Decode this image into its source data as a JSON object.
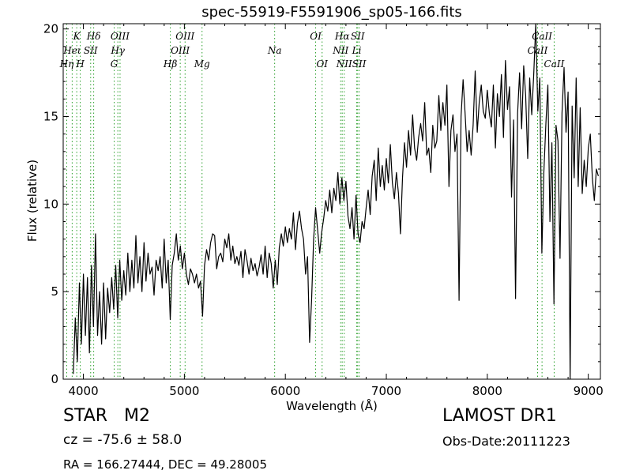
{
  "chart_data": {
    "type": "line",
    "title": "spec-55919-F5591906_sp05-166.fits",
    "xlabel": "Wavelength (Å)",
    "ylabel": "Flux (relative)",
    "xlim": [
      3800,
      9120
    ],
    "ylim": [
      0,
      20.3
    ],
    "xticks": [
      "4000",
      "5000",
      "6000",
      "7000",
      "8000",
      "9000"
    ],
    "yticks": [
      "0",
      "5",
      "10",
      "15",
      "20"
    ],
    "grid": false,
    "line_color": "#000000",
    "marker_color": "#2ca02c",
    "series": [
      {
        "values": [
          [
            3900,
            0.3
          ],
          [
            3920,
            3.5
          ],
          [
            3940,
            1.0
          ],
          [
            3960,
            5.5
          ],
          [
            3980,
            2.0
          ],
          [
            4000,
            6.0
          ],
          [
            4020,
            2.5
          ],
          [
            4040,
            5.8
          ],
          [
            4060,
            1.5
          ],
          [
            4080,
            6.5
          ],
          [
            4100,
            3.0
          ],
          [
            4120,
            8.3
          ],
          [
            4140,
            2.5
          ],
          [
            4160,
            5.0
          ],
          [
            4180,
            2.0
          ],
          [
            4200,
            5.5
          ],
          [
            4220,
            2.3
          ],
          [
            4240,
            5.2
          ],
          [
            4260,
            3.8
          ],
          [
            4280,
            5.8
          ],
          [
            4300,
            4.0
          ],
          [
            4320,
            6.5
          ],
          [
            4340,
            3.5
          ],
          [
            4360,
            6.8
          ],
          [
            4380,
            4.5
          ],
          [
            4400,
            6.2
          ],
          [
            4420,
            4.8
          ],
          [
            4440,
            7.2
          ],
          [
            4460,
            5.0
          ],
          [
            4480,
            6.8
          ],
          [
            4500,
            5.2
          ],
          [
            4520,
            8.2
          ],
          [
            4540,
            5.5
          ],
          [
            4560,
            7.0
          ],
          [
            4580,
            5.0
          ],
          [
            4600,
            7.8
          ],
          [
            4620,
            5.6
          ],
          [
            4640,
            7.2
          ],
          [
            4660,
            6.0
          ],
          [
            4680,
            6.4
          ],
          [
            4700,
            4.8
          ],
          [
            4720,
            6.8
          ],
          [
            4740,
            6.2
          ],
          [
            4760,
            7.0
          ],
          [
            4780,
            5.2
          ],
          [
            4800,
            8.0
          ],
          [
            4820,
            5.5
          ],
          [
            4840,
            6.8
          ],
          [
            4860,
            3.4
          ],
          [
            4880,
            6.5
          ],
          [
            4900,
            7.2
          ],
          [
            4920,
            8.3
          ],
          [
            4940,
            6.8
          ],
          [
            4960,
            7.6
          ],
          [
            4980,
            6.3
          ],
          [
            5000,
            7.2
          ],
          [
            5020,
            6.0
          ],
          [
            5040,
            5.4
          ],
          [
            5060,
            6.3
          ],
          [
            5080,
            6.0
          ],
          [
            5100,
            5.5
          ],
          [
            5120,
            6.0
          ],
          [
            5140,
            5.2
          ],
          [
            5160,
            5.6
          ],
          [
            5180,
            3.6
          ],
          [
            5200,
            6.5
          ],
          [
            5220,
            7.4
          ],
          [
            5240,
            6.8
          ],
          [
            5260,
            7.8
          ],
          [
            5280,
            8.3
          ],
          [
            5300,
            8.2
          ],
          [
            5320,
            6.3
          ],
          [
            5340,
            7.0
          ],
          [
            5360,
            7.2
          ],
          [
            5380,
            6.7
          ],
          [
            5400,
            8.0
          ],
          [
            5420,
            7.5
          ],
          [
            5440,
            8.3
          ],
          [
            5460,
            6.8
          ],
          [
            5480,
            7.6
          ],
          [
            5500,
            6.6
          ],
          [
            5520,
            7.0
          ],
          [
            5540,
            6.5
          ],
          [
            5560,
            7.3
          ],
          [
            5580,
            5.8
          ],
          [
            5600,
            7.4
          ],
          [
            5620,
            6.8
          ],
          [
            5640,
            6.0
          ],
          [
            5660,
            6.9
          ],
          [
            5680,
            6.2
          ],
          [
            5700,
            6.6
          ],
          [
            5720,
            5.9
          ],
          [
            5740,
            6.4
          ],
          [
            5760,
            7.1
          ],
          [
            5780,
            6.0
          ],
          [
            5800,
            7.6
          ],
          [
            5820,
            5.8
          ],
          [
            5840,
            7.2
          ],
          [
            5860,
            6.6
          ],
          [
            5880,
            5.2
          ],
          [
            5900,
            6.8
          ],
          [
            5920,
            5.4
          ],
          [
            5940,
            7.5
          ],
          [
            5960,
            8.3
          ],
          [
            5980,
            7.6
          ],
          [
            6000,
            8.7
          ],
          [
            6020,
            7.8
          ],
          [
            6040,
            8.6
          ],
          [
            6060,
            8.0
          ],
          [
            6080,
            9.5
          ],
          [
            6100,
            7.4
          ],
          [
            6120,
            8.9
          ],
          [
            6140,
            9.6
          ],
          [
            6160,
            8.6
          ],
          [
            6180,
            8.0
          ],
          [
            6200,
            6.0
          ],
          [
            6220,
            7.0
          ],
          [
            6240,
            2.1
          ],
          [
            6260,
            4.5
          ],
          [
            6280,
            8.0
          ],
          [
            6300,
            9.8
          ],
          [
            6320,
            8.5
          ],
          [
            6340,
            7.2
          ],
          [
            6360,
            8.4
          ],
          [
            6380,
            9.2
          ],
          [
            6400,
            10.2
          ],
          [
            6420,
            9.6
          ],
          [
            6440,
            10.8
          ],
          [
            6460,
            9.5
          ],
          [
            6480,
            10.9
          ],
          [
            6500,
            10.2
          ],
          [
            6520,
            11.8
          ],
          [
            6540,
            10.0
          ],
          [
            6560,
            11.5
          ],
          [
            6580,
            10.2
          ],
          [
            6600,
            11.3
          ],
          [
            6620,
            9.3
          ],
          [
            6640,
            8.6
          ],
          [
            6660,
            9.8
          ],
          [
            6680,
            8.0
          ],
          [
            6700,
            10.5
          ],
          [
            6720,
            8.3
          ],
          [
            6740,
            7.8
          ],
          [
            6760,
            9.0
          ],
          [
            6780,
            8.6
          ],
          [
            6800,
            9.8
          ],
          [
            6820,
            10.8
          ],
          [
            6840,
            9.4
          ],
          [
            6860,
            11.6
          ],
          [
            6880,
            12.5
          ],
          [
            6900,
            10.2
          ],
          [
            6920,
            13.2
          ],
          [
            6940,
            11.0
          ],
          [
            6960,
            12.2
          ],
          [
            6980,
            10.8
          ],
          [
            7000,
            12.6
          ],
          [
            7020,
            11.2
          ],
          [
            7040,
            13.4
          ],
          [
            7060,
            11.2
          ],
          [
            7080,
            10.3
          ],
          [
            7100,
            11.8
          ],
          [
            7120,
            10.6
          ],
          [
            7140,
            8.3
          ],
          [
            7160,
            11.5
          ],
          [
            7180,
            13.5
          ],
          [
            7200,
            12.1
          ],
          [
            7220,
            14.2
          ],
          [
            7240,
            12.8
          ],
          [
            7260,
            15.1
          ],
          [
            7280,
            13.2
          ],
          [
            7300,
            12.5
          ],
          [
            7320,
            13.8
          ],
          [
            7340,
            14.6
          ],
          [
            7360,
            13.6
          ],
          [
            7380,
            15.8
          ],
          [
            7400,
            12.8
          ],
          [
            7420,
            13.2
          ],
          [
            7440,
            11.8
          ],
          [
            7460,
            14.5
          ],
          [
            7480,
            13.2
          ],
          [
            7500,
            13.6
          ],
          [
            7520,
            16.2
          ],
          [
            7540,
            14.2
          ],
          [
            7560,
            15.8
          ],
          [
            7580,
            14.5
          ],
          [
            7600,
            16.8
          ],
          [
            7620,
            11.0
          ],
          [
            7640,
            14.2
          ],
          [
            7660,
            15.1
          ],
          [
            7680,
            13.0
          ],
          [
            7700,
            14.0
          ],
          [
            7720,
            4.5
          ],
          [
            7740,
            15.0
          ],
          [
            7760,
            17.1
          ],
          [
            7780,
            15.2
          ],
          [
            7800,
            13.0
          ],
          [
            7820,
            14.2
          ],
          [
            7840,
            12.8
          ],
          [
            7860,
            14.5
          ],
          [
            7880,
            17.6
          ],
          [
            7900,
            14.1
          ],
          [
            7920,
            15.8
          ],
          [
            7940,
            16.8
          ],
          [
            7960,
            15.3
          ],
          [
            7980,
            14.9
          ],
          [
            8000,
            16.5
          ],
          [
            8020,
            15.2
          ],
          [
            8040,
            14.4
          ],
          [
            8060,
            16.8
          ],
          [
            8080,
            13.2
          ],
          [
            8100,
            16.3
          ],
          [
            8120,
            15.0
          ],
          [
            8140,
            17.4
          ],
          [
            8160,
            13.8
          ],
          [
            8180,
            18.2
          ],
          [
            8200,
            15.4
          ],
          [
            8220,
            16.7
          ],
          [
            8240,
            10.4
          ],
          [
            8260,
            14.8
          ],
          [
            8280,
            4.6
          ],
          [
            8300,
            15.2
          ],
          [
            8320,
            17.5
          ],
          [
            8340,
            14.3
          ],
          [
            8360,
            17.9
          ],
          [
            8380,
            16.2
          ],
          [
            8400,
            12.6
          ],
          [
            8420,
            17.2
          ],
          [
            8440,
            15.1
          ],
          [
            8460,
            17.4
          ],
          [
            8480,
            20.3
          ],
          [
            8500,
            15.3
          ],
          [
            8520,
            17.2
          ],
          [
            8540,
            7.2
          ],
          [
            8560,
            11.8
          ],
          [
            8580,
            14.6
          ],
          [
            8600,
            16.8
          ],
          [
            8620,
            9.0
          ],
          [
            8640,
            13.5
          ],
          [
            8660,
            4.3
          ],
          [
            8680,
            14.5
          ],
          [
            8700,
            13.6
          ],
          [
            8720,
            6.9
          ],
          [
            8740,
            15.2
          ],
          [
            8760,
            17.8
          ],
          [
            8780,
            14.1
          ],
          [
            8800,
            16.4
          ],
          [
            8820,
            0.0
          ],
          [
            8840,
            15.6
          ],
          [
            8860,
            11.5
          ],
          [
            8880,
            17.2
          ],
          [
            8900,
            11.0
          ],
          [
            8920,
            15.5
          ],
          [
            8940,
            10.6
          ],
          [
            8960,
            12.5
          ],
          [
            8980,
            11.0
          ],
          [
            9000,
            13.2
          ],
          [
            9020,
            14.0
          ],
          [
            9040,
            11.5
          ],
          [
            9060,
            10.2
          ],
          [
            9080,
            12.0
          ],
          [
            9100,
            11.6
          ]
        ]
      }
    ],
    "spectral_lines": [
      {
        "label": "Hη",
        "wavelength": 3835,
        "row": 3
      },
      {
        "label": "Heι",
        "wavelength": 3889,
        "row": 2
      },
      {
        "label": "K",
        "wavelength": 3934,
        "row": 1
      },
      {
        "label": "H",
        "wavelength": 3969,
        "row": 3
      },
      {
        "label": "SII",
        "wavelength": 4072,
        "row": 2
      },
      {
        "label": "Hδ",
        "wavelength": 4102,
        "row": 1
      },
      {
        "label": "G",
        "wavelength": 4305,
        "row": 3
      },
      {
        "label": "Hγ",
        "wavelength": 4341,
        "row": 2
      },
      {
        "label": "OIII",
        "wavelength": 4363,
        "row": 1
      },
      {
        "label": "Hβ",
        "wavelength": 4861,
        "row": 3
      },
      {
        "label": "OIII",
        "wavelength": 4959,
        "row": 2
      },
      {
        "label": "OIII",
        "wavelength": 5007,
        "row": 1
      },
      {
        "label": "Mg",
        "wavelength": 5175,
        "row": 3
      },
      {
        "label": "Na",
        "wavelength": 5894,
        "row": 2
      },
      {
        "label": "OI",
        "wavelength": 6300,
        "row": 1
      },
      {
        "label": "OI",
        "wavelength": 6364,
        "row": 3
      },
      {
        "label": "NII",
        "wavelength": 6548,
        "row": 2
      },
      {
        "label": "Hα",
        "wavelength": 6563,
        "row": 1
      },
      {
        "label": "NII",
        "wavelength": 6583,
        "row": 3
      },
      {
        "label": "Li",
        "wavelength": 6707,
        "row": 2
      },
      {
        "label": "SII",
        "wavelength": 6716,
        "row": 1
      },
      {
        "label": "SII",
        "wavelength": 6731,
        "row": 3
      },
      {
        "label": "CaII",
        "wavelength": 8498,
        "row": 2
      },
      {
        "label": "CaII",
        "wavelength": 8542,
        "row": 1
      },
      {
        "label": "CaII",
        "wavelength": 8662,
        "row": 3
      }
    ]
  },
  "info": {
    "object_class": "STAR   M2",
    "redshift": "cz = -75.6 ± 58.0",
    "coords": "RA = 166.27444, DEC = 49.28005",
    "survey": "LAMOST DR1",
    "obs_date": "Obs-Date:20111223"
  }
}
